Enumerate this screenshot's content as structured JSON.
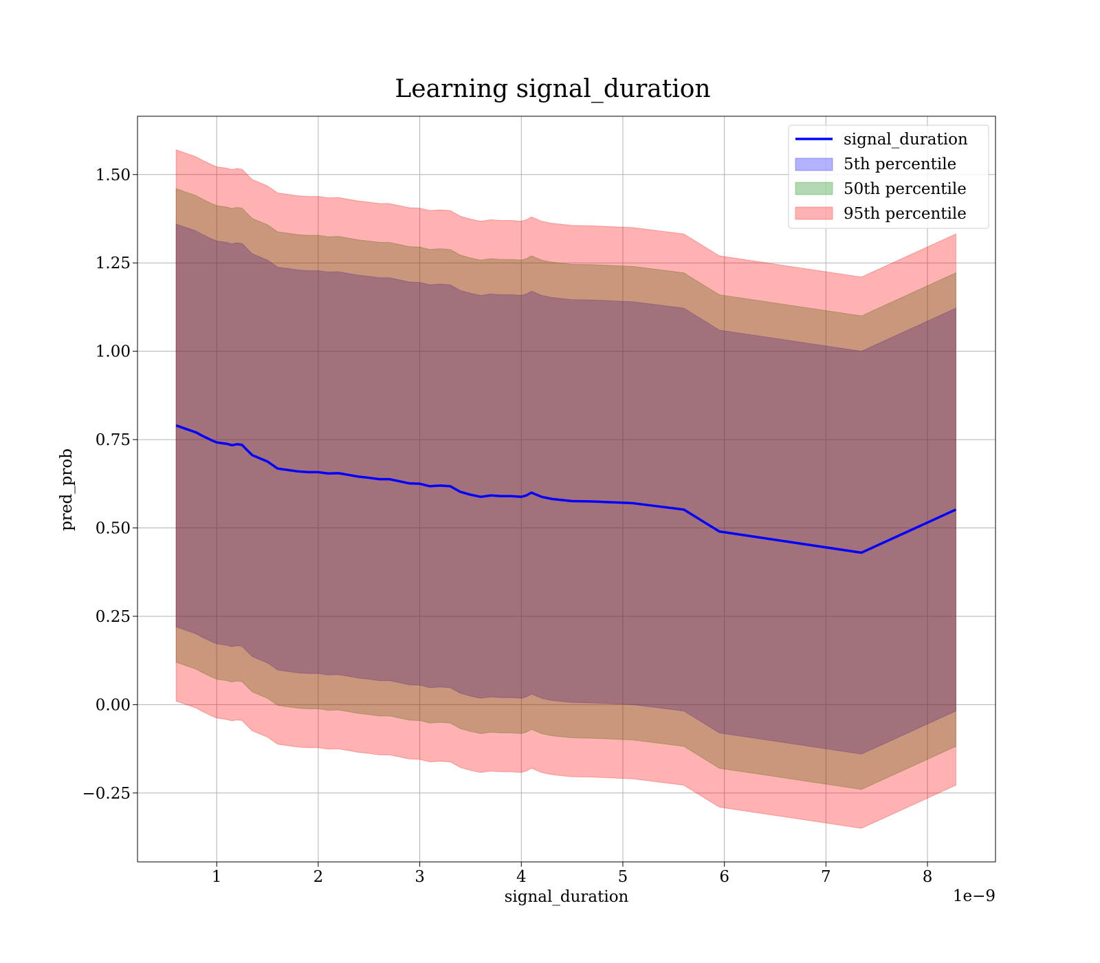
{
  "chart_data": {
    "type": "area",
    "title": "Learning signal_duration",
    "xlabel": "signal_duration",
    "ylabel": "pred_prob",
    "x_offset_label": "1e−9",
    "x_scale_exponent": -9,
    "xlim": [
      0.22,
      8.67
    ],
    "ylim": [
      -0.445,
      1.665
    ],
    "xticks": [
      1,
      2,
      3,
      4,
      5,
      6,
      7,
      8
    ],
    "xtick_labels": [
      "1",
      "2",
      "3",
      "4",
      "5",
      "6",
      "7",
      "8"
    ],
    "yticks": [
      -0.25,
      0.0,
      0.25,
      0.5,
      0.75,
      1.0,
      1.25,
      1.5
    ],
    "ytick_labels": [
      "−0.25",
      "0.00",
      "0.25",
      "0.50",
      "0.75",
      "1.00",
      "1.25",
      "1.50"
    ],
    "grid": true,
    "legend_position": "top-right",
    "colors": {
      "line": "#0000ff",
      "band_5th": "#0000ff",
      "band_50th": "#008000",
      "band_95th": "#ff0000"
    },
    "x": [
      0.6,
      0.65,
      0.7,
      0.75,
      0.8,
      0.85,
      0.9,
      0.95,
      1.0,
      1.05,
      1.1,
      1.15,
      1.2,
      1.25,
      1.3,
      1.35,
      1.4,
      1.5,
      1.6,
      1.7,
      1.8,
      1.9,
      2.0,
      2.1,
      2.2,
      2.3,
      2.4,
      2.5,
      2.6,
      2.7,
      2.8,
      2.9,
      3.0,
      3.1,
      3.2,
      3.3,
      3.4,
      3.5,
      3.6,
      3.7,
      3.8,
      3.9,
      4.0,
      4.05,
      4.1,
      4.15,
      4.2,
      4.3,
      4.5,
      4.7,
      5.1,
      5.6,
      5.95,
      7.35,
      8.28
    ],
    "series": [
      {
        "name": "signal_duration",
        "values": [
          0.79,
          0.785,
          0.78,
          0.775,
          0.77,
          0.762,
          0.755,
          0.748,
          0.742,
          0.74,
          0.738,
          0.734,
          0.737,
          0.735,
          0.72,
          0.706,
          0.7,
          0.688,
          0.668,
          0.664,
          0.66,
          0.658,
          0.658,
          0.654,
          0.655,
          0.65,
          0.645,
          0.642,
          0.638,
          0.638,
          0.632,
          0.626,
          0.625,
          0.618,
          0.62,
          0.618,
          0.602,
          0.594,
          0.588,
          0.592,
          0.59,
          0.59,
          0.588,
          0.592,
          0.6,
          0.594,
          0.588,
          0.582,
          0.576,
          0.575,
          0.57,
          0.552,
          0.49,
          0.43,
          0.552
        ]
      }
    ],
    "bands": [
      {
        "name": "5th percentile",
        "half_width": 0.57
      },
      {
        "name": "50th percentile",
        "half_width": 0.67
      },
      {
        "name": "95th percentile",
        "half_width": 0.78
      }
    ]
  }
}
